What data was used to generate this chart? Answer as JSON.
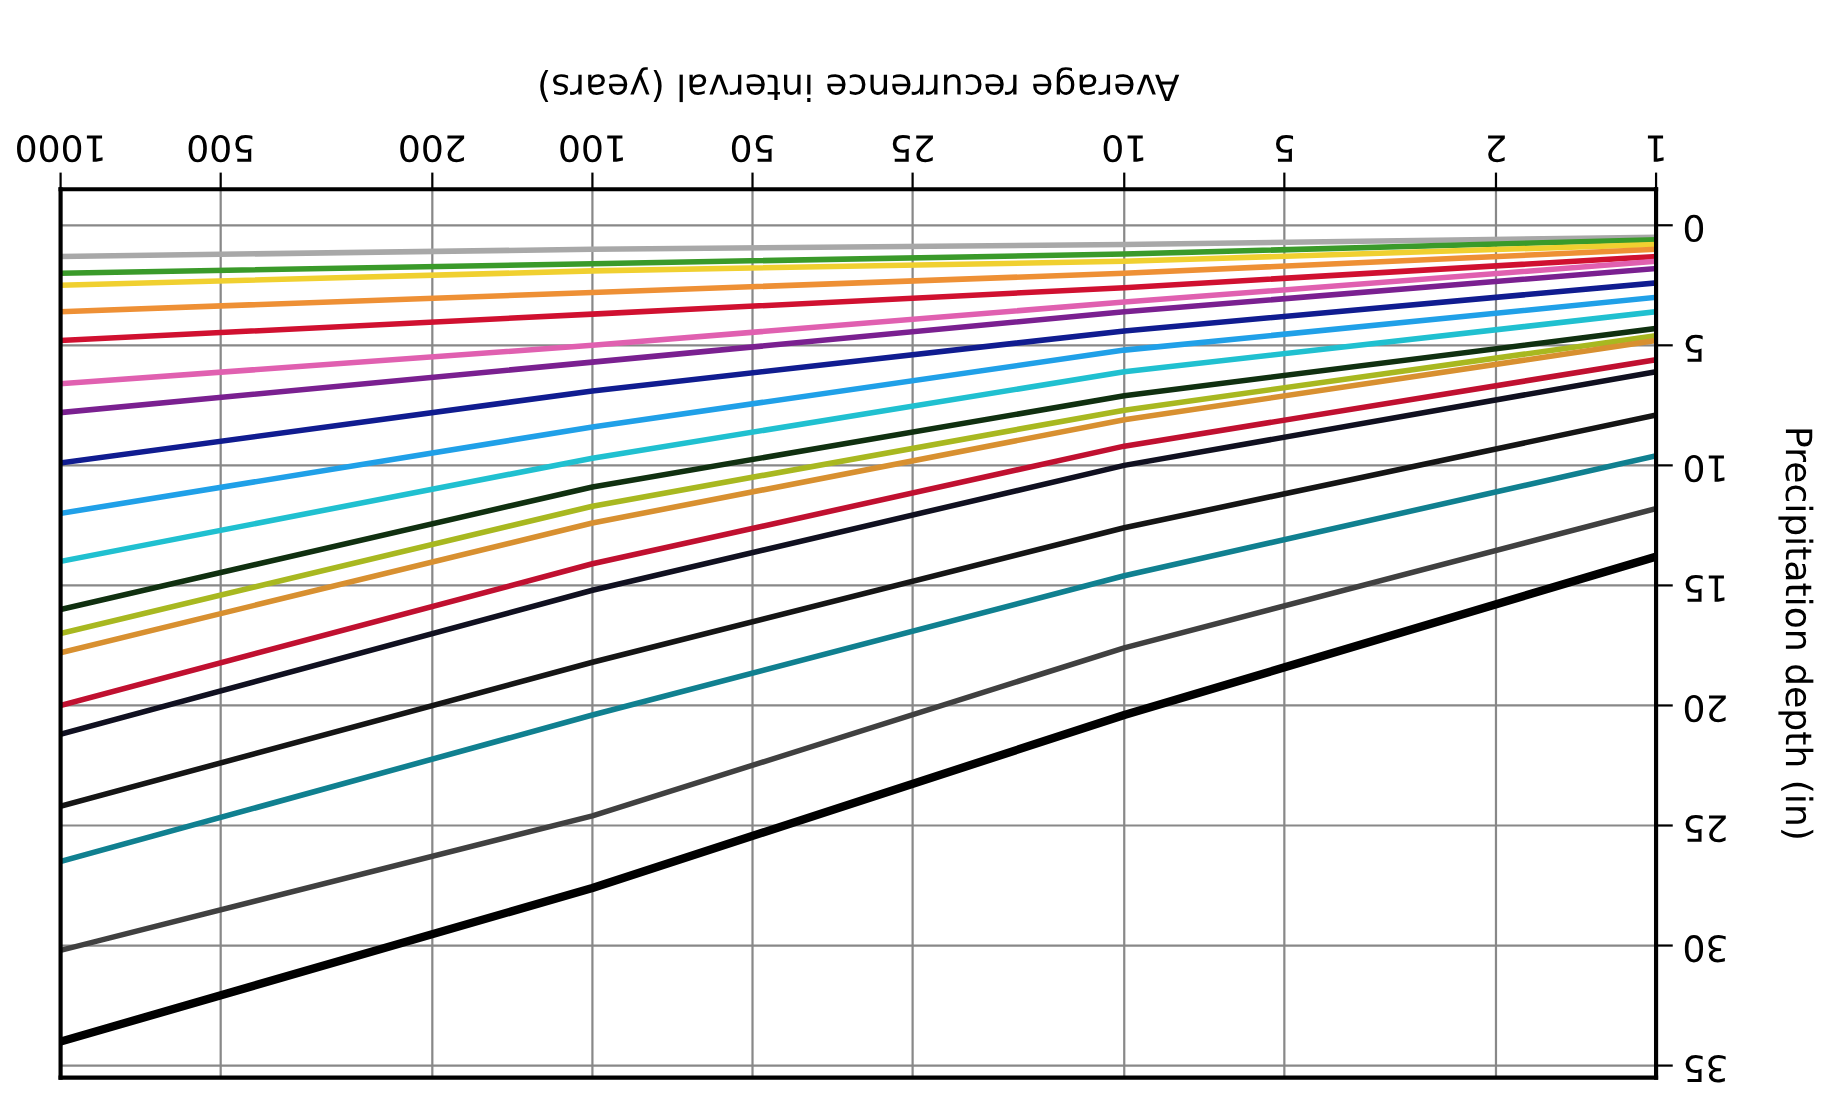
{
  "chart_data": {
    "type": "line",
    "xlabel": "Average recurrence interval (years)",
    "ylabel": "Precipitation depth (in)",
    "x": [
      1,
      10,
      100,
      1000
    ],
    "series": [
      {
        "color": "#a8a8a8",
        "values": [
          0.5,
          0.8,
          1.0,
          1.3
        ]
      },
      {
        "color": "#3a9a2a",
        "values": [
          0.6,
          1.2,
          1.6,
          2.0
        ]
      },
      {
        "color": "#f0d030",
        "values": [
          0.8,
          1.5,
          1.9,
          2.5
        ]
      },
      {
        "color": "#ee9035",
        "values": [
          1.0,
          2.0,
          2.8,
          3.6
        ]
      },
      {
        "color": "#d01030",
        "values": [
          1.3,
          2.6,
          3.7,
          4.8
        ]
      },
      {
        "color": "#e060b0",
        "values": [
          1.5,
          3.2,
          5.0,
          6.6
        ]
      },
      {
        "color": "#7a2090",
        "values": [
          1.8,
          3.6,
          5.7,
          7.8
        ]
      },
      {
        "color": "#101c90",
        "values": [
          2.4,
          4.4,
          6.9,
          9.9
        ]
      },
      {
        "color": "#20a0e8",
        "values": [
          3.0,
          5.2,
          8.4,
          12.0
        ]
      },
      {
        "color": "#20c0d0",
        "values": [
          3.6,
          6.1,
          9.7,
          14.0
        ]
      },
      {
        "color": "#103010",
        "values": [
          4.3,
          7.1,
          10.9,
          16.0
        ]
      },
      {
        "color": "#a8b820",
        "values": [
          4.6,
          7.7,
          11.7,
          17.0
        ]
      },
      {
        "color": "#d89030",
        "values": [
          4.8,
          8.1,
          12.4,
          17.8
        ]
      },
      {
        "color": "#c01030",
        "values": [
          5.6,
          9.2,
          14.1,
          20.0
        ]
      },
      {
        "color": "#101020",
        "values": [
          6.1,
          10.0,
          15.2,
          21.2
        ]
      },
      {
        "color": "#151515",
        "values": [
          7.9,
          12.6,
          18.2,
          24.2
        ]
      },
      {
        "color": "#108090",
        "values": [
          9.6,
          14.6,
          20.4,
          26.5
        ]
      },
      {
        "color": "#404040",
        "values": [
          11.8,
          17.6,
          24.6,
          30.2
        ]
      },
      {
        "color": "#000000",
        "values": [
          13.8,
          20.4,
          27.6,
          34.0
        ]
      }
    ],
    "log": "x",
    "xlim": [
      1000,
      1
    ],
    "xticks": [
      1,
      2,
      5,
      10,
      25,
      50,
      100,
      200,
      500,
      1000
    ],
    "ylim": [
      35.5,
      -1.5
    ],
    "yticks": [
      0,
      5,
      10,
      15,
      20,
      25,
      30,
      35
    ],
    "grid": true,
    "line_style": "solid",
    "marker": "none"
  }
}
